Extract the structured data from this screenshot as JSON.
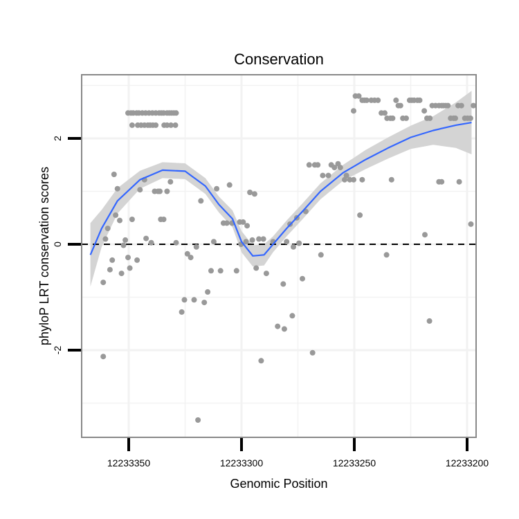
{
  "chart_data": {
    "type": "scatter",
    "title": "Conservation",
    "xlabel": "Genomic Position",
    "ylabel": "phyloP LRT conservation scores",
    "x_reversed": true,
    "xlim": [
      12233370,
      12233193
    ],
    "ylim": [
      -3.6,
      3.2
    ],
    "x_ticks": [
      12233350,
      12233300,
      12233250,
      12233200
    ],
    "x_tick_labels": [
      "12233350",
      "12233300",
      "12233250",
      "12233200"
    ],
    "y_ticks": [
      2,
      0,
      -2
    ],
    "y_tick_labels": [
      "2",
      "0",
      "-2"
    ],
    "grid": true,
    "reference_line_y": 0,
    "colors": {
      "points": "#999999",
      "smooth_line": "#3366FF",
      "confidence_band": "#D4D4D4",
      "panel_border": "#888888",
      "grid": "#F2F2F2",
      "reference_line": "#000000"
    },
    "series": [
      {
        "type": "points",
        "x": [
          12233361.3,
          12233361.3,
          12233360.3,
          12233359.3,
          12233358.3,
          12233357.3,
          12233356.5,
          12233355.8,
          12233355.0,
          12233354.0,
          12233353.2,
          12233352.3,
          12233351.5,
          12233350.3,
          12233349.5,
          12233348.5,
          12233346.3,
          12233345.0,
          12233343.0,
          12233342.3,
          12233340.0,
          12233338.5,
          12233337.0,
          12233336.2,
          12233335.8,
          12233334.5,
          12233333.0,
          12233331.5,
          12233329.0,
          12233326.5,
          12233325.3,
          12233324.0,
          12233322.5,
          12233321.0,
          12233320.0,
          12233319.3,
          12233318.0,
          12233316.5,
          12233315.0,
          12233313.5,
          12233312.3,
          12233311.0,
          12233309.3,
          12233308.0,
          12233306.5,
          12233305.3,
          12233304.2,
          12233302.2,
          12233300.8,
          12233300.2,
          12233299.3,
          12233298.0,
          12233297.5,
          12233296.3,
          12233295.2,
          12233294.2,
          12233293.5,
          12233292.3,
          12233291.3,
          12233290.3,
          12233289.0,
          12233286.0,
          12233284.0,
          12233281.5,
          12233281.0,
          12233280.0,
          12233278.5,
          12233277.5,
          12233277.0,
          12233275.5,
          12233274.5,
          12233273.0,
          12233271.5,
          12233270.0,
          12233268.5,
          12233267.5,
          12233266.2,
          12233264.8,
          12233264.0,
          12233261.5,
          12233260.2,
          12233258.8,
          12233257.2,
          12233256.2,
          12233254.3,
          12233253.5,
          12233252.0,
          12233250.3,
          12233247.5,
          12233246.5,
          12233235.7,
          12233233.5,
          12233218.7,
          12233216.7,
          12233212.5,
          12233211.3,
          12233203.5,
          12233198.3
        ],
        "y": [
          -0.72,
          -2.12,
          0.1,
          0.3,
          -0.48,
          -0.3,
          1.32,
          0.55,
          1.05,
          0.45,
          -0.55,
          -0.02,
          0.08,
          -0.25,
          -0.45,
          0.47,
          -0.3,
          1.03,
          1.22,
          0.11,
          0.03,
          1.0,
          1.0,
          1.0,
          0.47,
          0.47,
          1.0,
          1.18,
          0.03,
          -1.28,
          -1.05,
          -0.18,
          -0.25,
          -1.05,
          -0.05,
          -3.32,
          0.82,
          -1.1,
          -0.9,
          -0.5,
          0.05,
          1.05,
          -0.5,
          0.4,
          0.4,
          1.12,
          0.4,
          -0.5,
          0.42,
          0.0,
          0.42,
          0.05,
          0.35,
          0.98,
          0.08,
          0.95,
          -0.45,
          0.1,
          -2.2,
          0.1,
          -0.55,
          0.05,
          -1.55,
          -0.75,
          -1.6,
          0.05,
          0.38,
          -1.35,
          -0.05,
          0.5,
          0.02,
          -0.65,
          0.62,
          1.5,
          -2.05,
          1.5,
          1.5,
          -0.2,
          1.3,
          1.3,
          1.5,
          1.45,
          1.52,
          1.45,
          1.22,
          1.3,
          1.22,
          1.22,
          0.55,
          1.22,
          -0.2,
          1.22,
          0.18,
          -1.45,
          1.18,
          1.18,
          1.18,
          0.38
        ]
      },
      {
        "type": "points",
        "x": [
          12233350.3,
          12233349.0,
          12233348.0,
          12233346.5,
          12233345.5,
          12233344.0,
          12233342.5,
          12233341.0,
          12233339.5,
          12233338.0,
          12233336.5,
          12233335.5,
          12233334.5,
          12233333.0,
          12233332.0,
          12233331.0,
          12233330.0,
          12233329.0,
          12233348.5,
          12233346.0,
          12233344.5,
          12233343.0,
          12233341.5,
          12233340.5,
          12233339.3,
          12233338.0,
          12233334.3,
          12233333.0,
          12233331.3,
          12233329.3
        ],
        "y": [
          2.48,
          2.48,
          2.48,
          2.48,
          2.48,
          2.48,
          2.48,
          2.48,
          2.48,
          2.48,
          2.48,
          2.48,
          2.48,
          2.48,
          2.48,
          2.48,
          2.48,
          2.48,
          2.25,
          2.25,
          2.25,
          2.25,
          2.25,
          2.25,
          2.25,
          2.25,
          2.25,
          2.25,
          2.25,
          2.25
        ]
      },
      {
        "type": "points",
        "x": [
          12233250.3,
          12233249.5,
          12233248.0,
          12233246.5,
          12233245.5,
          12233244.5,
          12233242.5,
          12233241.0,
          12233239.5,
          12233238.0,
          12233236.5,
          12233235.5,
          12233234.0,
          12233233.0,
          12233231.5,
          12233230.5,
          12233229.5,
          12233228.5,
          12233227.0,
          12233225.5,
          12233224.5,
          12233223.5,
          12233222.0,
          12233221.0,
          12233219.0,
          12233217.8,
          12233216.5,
          12233215.5,
          12233214.0,
          12233212.5,
          12233211.3,
          12233210.5,
          12233209.5,
          12233208.5,
          12233207.3,
          12233206.0,
          12233205.2,
          12233204.0,
          12233202.5,
          12233201.0,
          12233199.8,
          12233198.5,
          12233197.2
        ],
        "y": [
          2.52,
          2.8,
          2.8,
          2.72,
          2.72,
          2.72,
          2.72,
          2.72,
          2.72,
          2.48,
          2.48,
          2.38,
          2.38,
          2.38,
          2.72,
          2.62,
          2.62,
          2.38,
          2.38,
          2.72,
          2.72,
          2.72,
          2.72,
          2.72,
          2.52,
          2.38,
          2.38,
          2.62,
          2.62,
          2.62,
          2.62,
          2.62,
          2.62,
          2.62,
          2.38,
          2.38,
          2.38,
          2.62,
          2.62,
          2.38,
          2.38,
          2.38,
          2.62
        ]
      },
      {
        "type": "smooth",
        "x": [
          12233367,
          12233362,
          12233355,
          12233345,
          12233335,
          12233325,
          12233316,
          12233310,
          12233304,
          12233300,
          12233295,
          12233290,
          12233286,
          12233280,
          12233273,
          12233265,
          12233255,
          12233245,
          12233235,
          12233225,
          12233215,
          12233205,
          12233198
        ],
        "y": [
          -0.2,
          0.3,
          0.82,
          1.22,
          1.4,
          1.38,
          1.1,
          0.75,
          0.48,
          0.05,
          -0.22,
          -0.2,
          0.0,
          0.3,
          0.62,
          1.0,
          1.35,
          1.6,
          1.82,
          2.02,
          2.15,
          2.25,
          2.3
        ],
        "y_lower": [
          -0.8,
          -0.05,
          0.58,
          1.05,
          1.25,
          1.23,
          0.95,
          0.6,
          0.32,
          -0.15,
          -0.42,
          -0.4,
          -0.15,
          0.15,
          0.47,
          0.85,
          1.2,
          1.42,
          1.62,
          1.8,
          1.88,
          1.82,
          1.7
        ],
        "y_upper": [
          0.4,
          0.65,
          1.06,
          1.39,
          1.55,
          1.53,
          1.25,
          0.9,
          0.64,
          0.25,
          -0.02,
          0.0,
          0.15,
          0.45,
          0.77,
          1.15,
          1.5,
          1.78,
          2.02,
          2.24,
          2.42,
          2.68,
          2.9
        ]
      }
    ]
  }
}
